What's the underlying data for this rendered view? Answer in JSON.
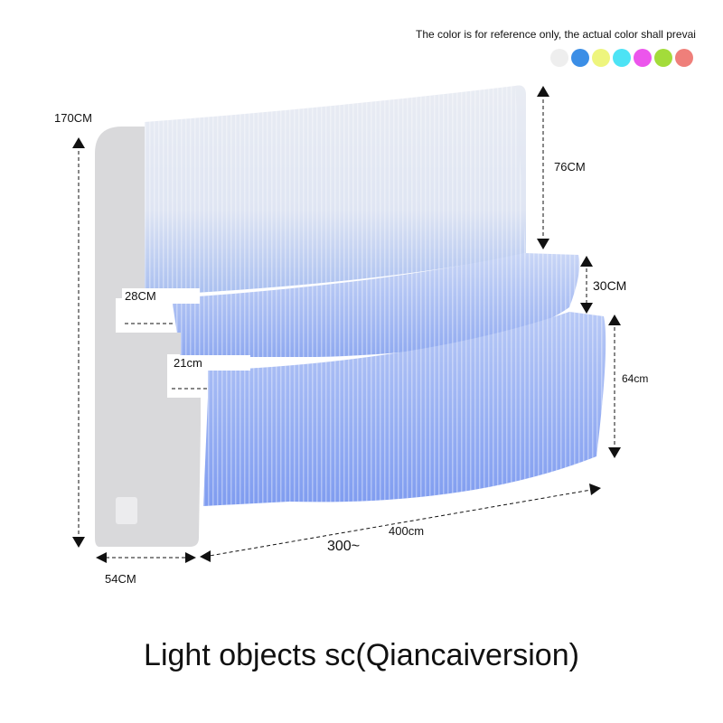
{
  "color_note": "The color is for reference only, the actual color shall prevai",
  "color_options": [
    "#eeeeee",
    "#3b8ee6",
    "#eef57d",
    "#4de3f5",
    "#ec55ec",
    "#a3dc3a",
    "#ef7f7a"
  ],
  "dimensions": {
    "total_height": "170CM",
    "back_height": "76CM",
    "step_height": "30CM",
    "base_height": "64cm",
    "top_step_depth": "28CM",
    "lower_step_depth": "21cm",
    "width": "54CM",
    "length": "400cm",
    "length_range": "300~"
  },
  "caption": "Light objects sc(Qiancaiversion)"
}
